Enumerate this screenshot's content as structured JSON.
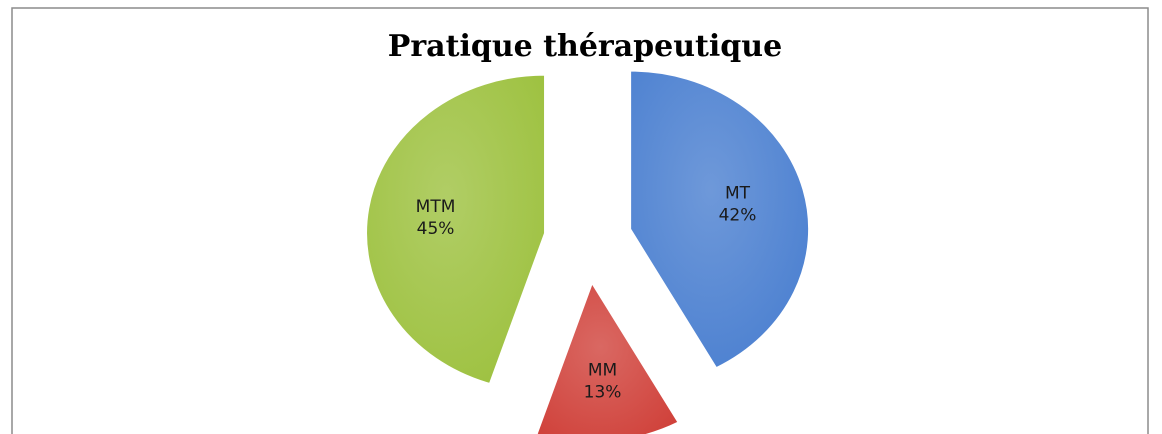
{
  "chart_data": {
    "type": "pie",
    "title": "Pratique thérapeutique",
    "categories": [
      "MT",
      "MM",
      "MTM"
    ],
    "values": [
      42,
      13,
      45
    ],
    "value_labels": [
      "42%",
      "13%",
      "45%"
    ],
    "colors": [
      "#4a7fd0",
      "#d0423b",
      "#9dc13f"
    ]
  }
}
